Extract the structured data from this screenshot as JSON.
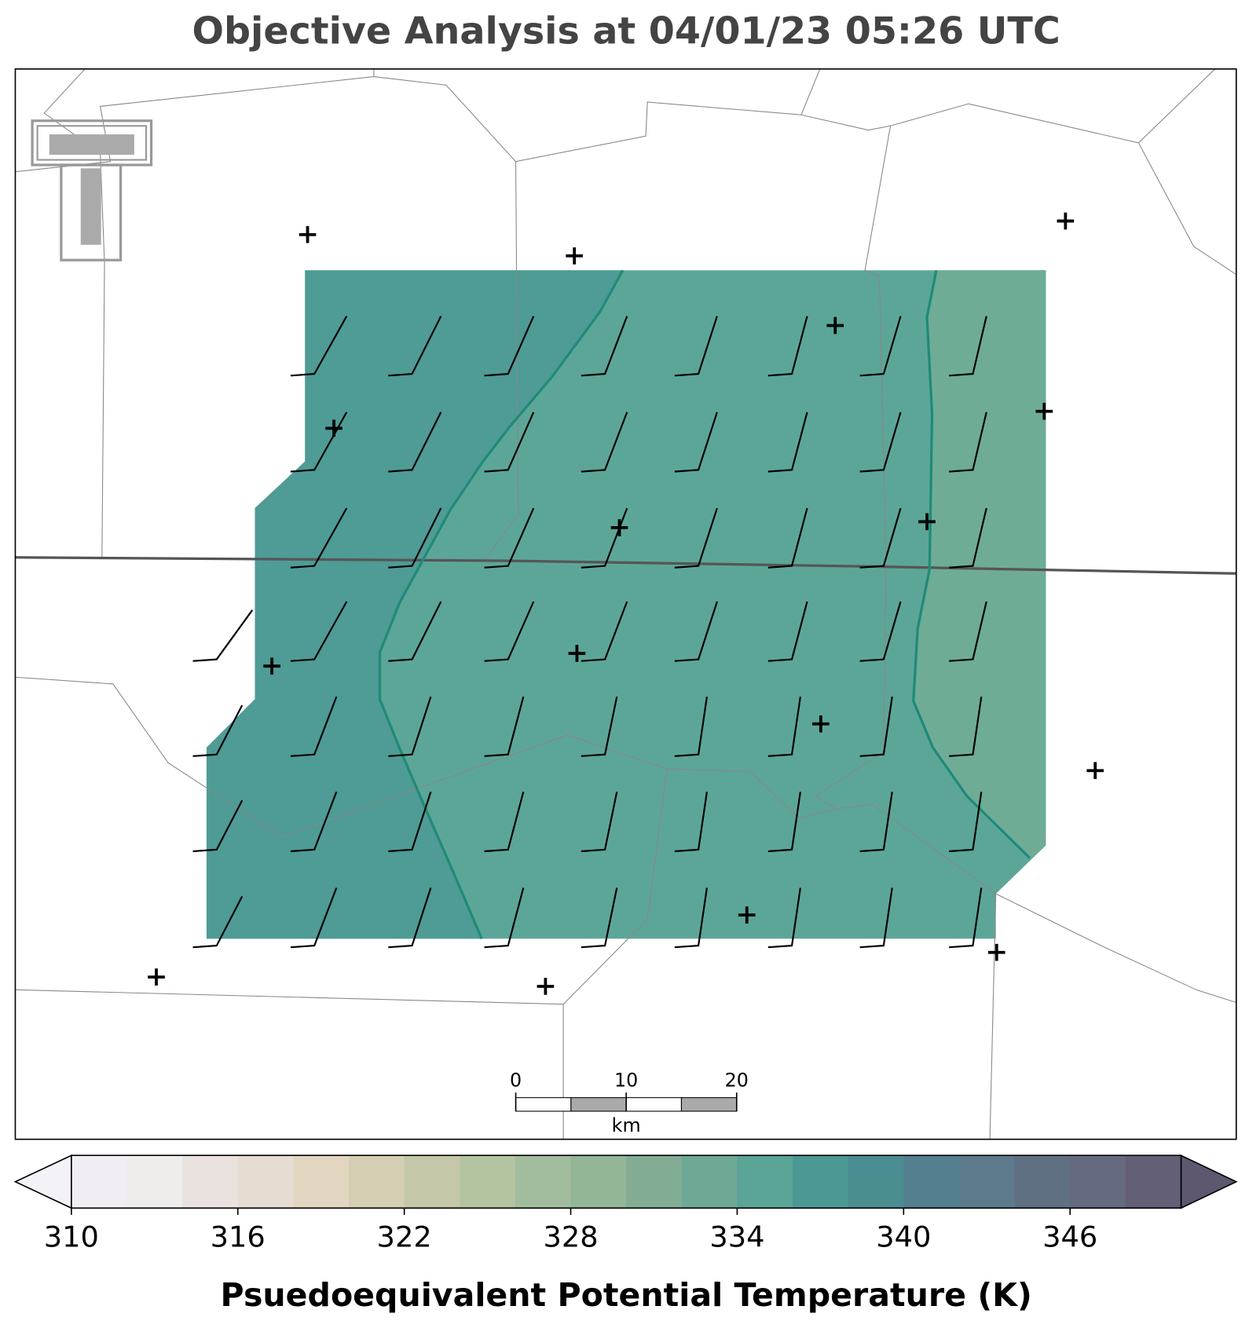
{
  "chart_data": {
    "type": "map-contour",
    "title": "Objective Analysis at 04/01/23 05:26 UTC",
    "colorbar": {
      "label": "Psuedoequivalent Potential Temperature (K)",
      "clim": [
        310,
        350
      ],
      "ticks": [
        310,
        316,
        322,
        328,
        334,
        340,
        346
      ],
      "levels": [
        310,
        312,
        314,
        316,
        318,
        320,
        322,
        324,
        326,
        328,
        330,
        332,
        334,
        336,
        338,
        340,
        342,
        344,
        346,
        348,
        350
      ],
      "colors": [
        "#f0eef4",
        "#efecec",
        "#e9e2de",
        "#e5dcd2",
        "#e2d6c0",
        "#d4cfb2",
        "#c4c8a8",
        "#b4c4a0",
        "#a2bd9d",
        "#94b698",
        "#82ad94",
        "#6ea996",
        "#5aa595",
        "#4b9894",
        "#4a8e92",
        "#537f8e",
        "#5c7a8c",
        "#607083",
        "#656a80",
        "#635f76"
      ],
      "under_color": "#f3f2f8",
      "over_color": "#5d5870"
    },
    "scale_bar": {
      "ticks": [
        0,
        10,
        20
      ],
      "unit": "km"
    }
  }
}
